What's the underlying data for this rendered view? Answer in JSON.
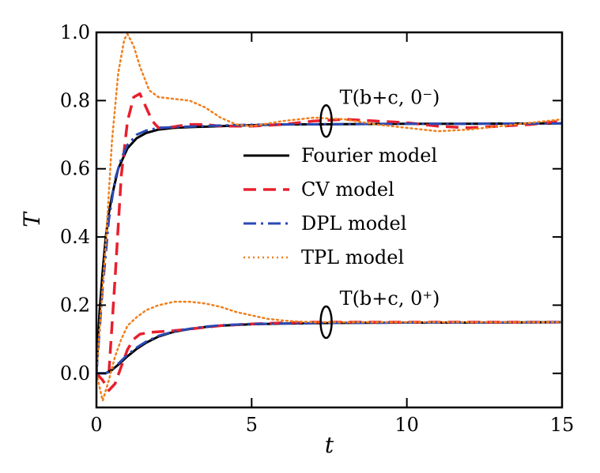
{
  "chart_data": {
    "type": "line",
    "xlabel": "t",
    "ylabel": "T",
    "xlim": [
      0,
      15
    ],
    "ylim": [
      -0.1,
      1.0
    ],
    "x_ticks": [
      0,
      5,
      10,
      15
    ],
    "x_tick_labels": [
      "0",
      "5",
      "10",
      "15"
    ],
    "y_ticks": [
      0.0,
      0.2,
      0.4,
      0.6,
      0.8,
      1.0
    ],
    "y_tick_labels": [
      "0.0",
      "0.2",
      "0.4",
      "0.6",
      "0.8",
      "1.0"
    ],
    "grid": false,
    "legend_position": "center-right",
    "legend": [
      "Fourier model",
      "CV model",
      "DPL model",
      "TPL model"
    ],
    "annotations": [
      {
        "text": "T(b+c, 0⁻)",
        "x": 7.4,
        "y": 0.74
      },
      {
        "text": "T(b+c, 0⁺)",
        "x": 7.4,
        "y": 0.15
      }
    ],
    "series": [
      {
        "name": "Fourier model",
        "group": "T(b+c, 0⁻)",
        "color": "#000000",
        "dash": "solid",
        "x": [
          0,
          0.1,
          0.2,
          0.3,
          0.4,
          0.5,
          0.7,
          1.0,
          1.3,
          1.6,
          2.0,
          2.5,
          3.0,
          4.0,
          5.0,
          6.0,
          8.0,
          10.0,
          12.0,
          15.0
        ],
        "y": [
          0,
          0.18,
          0.3,
          0.4,
          0.47,
          0.52,
          0.6,
          0.66,
          0.69,
          0.705,
          0.715,
          0.72,
          0.722,
          0.725,
          0.728,
          0.73,
          0.731,
          0.732,
          0.732,
          0.733
        ]
      },
      {
        "name": "CV model",
        "group": "T(b+c, 0⁻)",
        "color": "#e8202e",
        "dash": "dashed",
        "x": [
          0.4,
          0.6,
          0.8,
          1.0,
          1.2,
          1.4,
          1.6,
          1.8,
          2.0,
          2.3,
          2.6,
          3.0,
          3.5,
          4.0,
          5.0,
          6.0,
          7.0,
          8.0,
          9.0,
          10.0,
          11.0,
          12.0,
          13.0,
          14.0,
          15.0
        ],
        "y": [
          0.0,
          0.28,
          0.58,
          0.74,
          0.81,
          0.82,
          0.78,
          0.74,
          0.72,
          0.72,
          0.725,
          0.73,
          0.73,
          0.725,
          0.725,
          0.73,
          0.74,
          0.745,
          0.74,
          0.735,
          0.725,
          0.72,
          0.725,
          0.73,
          0.74
        ]
      },
      {
        "name": "DPL model",
        "group": "T(b+c, 0⁻)",
        "color": "#2a4ab5",
        "dash": "dashdot",
        "x": [
          0,
          0.2,
          0.4,
          0.6,
          0.8,
          1.0,
          1.3,
          1.6,
          2.0,
          2.5,
          3.0,
          4.0,
          5.0,
          6.0,
          8.0,
          10.0,
          12.0,
          15.0
        ],
        "y": [
          0,
          0.25,
          0.45,
          0.57,
          0.63,
          0.67,
          0.7,
          0.712,
          0.72,
          0.722,
          0.724,
          0.727,
          0.729,
          0.73,
          0.731,
          0.732,
          0.732,
          0.733
        ]
      },
      {
        "name": "TPL model",
        "group": "T(b+c, 0⁻)",
        "color": "#f07f1c",
        "dash": "dotted",
        "x": [
          0,
          0.3,
          0.5,
          0.7,
          0.9,
          1.0,
          1.2,
          1.4,
          1.7,
          2.0,
          2.5,
          3.0,
          3.5,
          4.0,
          4.5,
          5.0,
          6.0,
          7.0,
          8.0,
          9.0,
          10.0,
          11.0,
          12.0,
          13.0,
          14.0,
          15.0
        ],
        "y": [
          0,
          0.38,
          0.68,
          0.88,
          0.98,
          0.995,
          0.96,
          0.9,
          0.83,
          0.81,
          0.805,
          0.8,
          0.78,
          0.75,
          0.73,
          0.725,
          0.74,
          0.75,
          0.745,
          0.73,
          0.72,
          0.71,
          0.715,
          0.725,
          0.735,
          0.745
        ]
      },
      {
        "name": "Fourier model",
        "group": "T(b+c, 0⁺)",
        "color": "#000000",
        "dash": "solid",
        "x": [
          0,
          0.3,
          0.5,
          0.7,
          1.0,
          1.3,
          1.6,
          2.0,
          2.5,
          3.0,
          3.5,
          4.0,
          5.0,
          6.0,
          7.0,
          8.0,
          10.0,
          12.0,
          15.0
        ],
        "y": [
          0,
          0.0,
          0.01,
          0.025,
          0.05,
          0.072,
          0.09,
          0.108,
          0.122,
          0.13,
          0.136,
          0.14,
          0.144,
          0.146,
          0.147,
          0.148,
          0.149,
          0.149,
          0.15
        ]
      },
      {
        "name": "CV model",
        "group": "T(b+c, 0⁺)",
        "color": "#e8202e",
        "dash": "dashed",
        "x": [
          0,
          0.2,
          0.4,
          0.6,
          0.8,
          1.0,
          1.2,
          1.4,
          1.7,
          2.0,
          2.5,
          3.0,
          4.0,
          5.0,
          6.0,
          7.0,
          8.0,
          10.0,
          12.0,
          15.0
        ],
        "y": [
          0,
          -0.02,
          -0.05,
          -0.03,
          0.02,
          0.07,
          0.1,
          0.115,
          0.12,
          0.122,
          0.125,
          0.13,
          0.14,
          0.145,
          0.148,
          0.15,
          0.15,
          0.15,
          0.15,
          0.15
        ]
      },
      {
        "name": "DPL model",
        "group": "T(b+c, 0⁺)",
        "color": "#2a4ab5",
        "dash": "dashdot",
        "x": [
          0,
          0.3,
          0.5,
          0.7,
          1.0,
          1.3,
          1.6,
          2.0,
          2.5,
          3.0,
          3.5,
          4.0,
          5.0,
          6.0,
          7.0,
          8.0,
          10.0,
          12.0,
          15.0
        ],
        "y": [
          0,
          0.0,
          0.012,
          0.028,
          0.055,
          0.076,
          0.093,
          0.11,
          0.123,
          0.131,
          0.137,
          0.141,
          0.145,
          0.146,
          0.147,
          0.148,
          0.149,
          0.149,
          0.15
        ]
      },
      {
        "name": "TPL model",
        "group": "T(b+c, 0⁺)",
        "color": "#f07f1c",
        "dash": "dotted",
        "x": [
          0,
          0.2,
          0.4,
          0.6,
          0.8,
          1.0,
          1.3,
          1.6,
          2.0,
          2.5,
          3.0,
          3.5,
          4.0,
          4.5,
          5.0,
          5.5,
          6.0,
          6.5,
          7.0,
          8.0,
          10.0,
          12.0,
          15.0
        ],
        "y": [
          0,
          -0.08,
          -0.02,
          0.05,
          0.1,
          0.14,
          0.165,
          0.185,
          0.2,
          0.21,
          0.21,
          0.205,
          0.195,
          0.18,
          0.17,
          0.16,
          0.155,
          0.152,
          0.15,
          0.15,
          0.15,
          0.15,
          0.15
        ]
      }
    ]
  }
}
